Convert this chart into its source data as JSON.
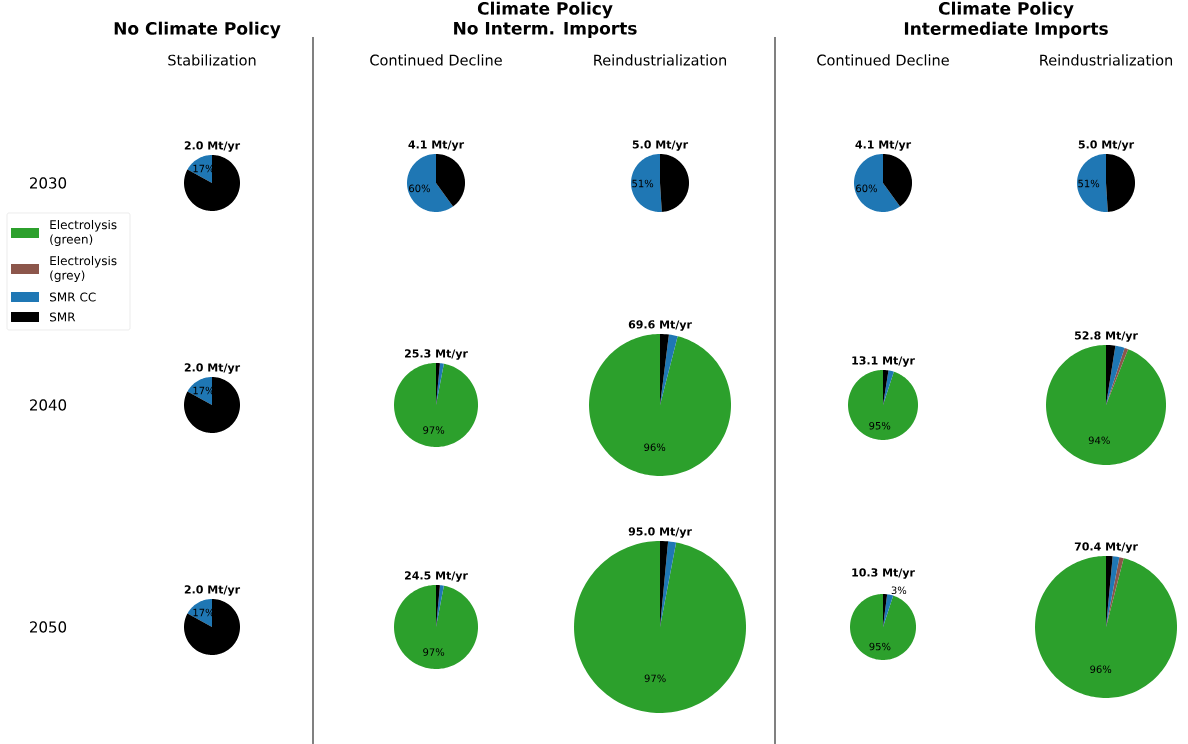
{
  "chart_data": [
    {
      "type": "pie",
      "title": "2.0 Mt/yr",
      "categories": [
        "Electrolysis (green)",
        "Electrolysis (grey)",
        "SMR CC",
        "SMR"
      ],
      "values": [
        0,
        0,
        17,
        83
      ],
      "colors": [
        "#2ca02c",
        "#8c564b",
        "#1f77b4",
        "#000000"
      ],
      "value_labels": [
        null,
        null,
        "17%",
        null
      ],
      "legend": "bottom left",
      "annotations": [
        "No Climate Policy",
        "Stabilization",
        "2030"
      ]
    },
    {
      "type": "pie",
      "title": "4.1 Mt/yr",
      "categories": [
        null,
        null,
        null,
        null
      ],
      "values": [
        0,
        0,
        60,
        40
      ],
      "colors": [
        "#2ca02c",
        "#8c564b",
        "#1f77b4",
        "#000000"
      ],
      "value_labels": [
        null,
        null,
        "60%",
        null
      ],
      "annotations": [
        "Climate Policy",
        "No Interm. Imports",
        "Continued Decline"
      ]
    },
    {
      "type": "pie",
      "title": "5.0 Mt/yr",
      "categories": [
        null,
        null,
        null,
        null
      ],
      "values": [
        0,
        0,
        51,
        49
      ],
      "colors": [
        "#2ca02c",
        "#8c564b",
        "#1f77b4",
        "#000000"
      ],
      "value_labels": [
        null,
        null,
        "51%",
        null
      ],
      "annotations": [
        "Reindustrialization"
      ]
    },
    {
      "type": "pie",
      "title": "4.1 Mt/yr",
      "categories": [
        null,
        null,
        null,
        null
      ],
      "values": [
        0,
        0,
        60,
        40
      ],
      "colors": [
        "#2ca02c",
        "#8c564b",
        "#1f77b4",
        "#000000"
      ],
      "value_labels": [
        null,
        null,
        "60%",
        null
      ],
      "annotations": [
        "Climate Policy",
        "Intermediate Imports",
        "Continued Decline"
      ]
    },
    {
      "type": "pie",
      "title": "5.0 Mt/yr",
      "categories": [
        null,
        null,
        null,
        null
      ],
      "values": [
        0,
        0,
        51,
        49
      ],
      "colors": [
        "#2ca02c",
        "#8c564b",
        "#1f77b4",
        "#000000"
      ],
      "value_labels": [
        null,
        null,
        "51%",
        null
      ],
      "annotations": [
        "Reindustrialization"
      ]
    },
    {
      "type": "pie",
      "title": "2.0 Mt/yr",
      "categories": [
        null,
        null,
        null,
        null
      ],
      "values": [
        0,
        0,
        17,
        83
      ],
      "colors": [
        "#2ca02c",
        "#8c564b",
        "#1f77b4",
        "#000000"
      ],
      "value_labels": [
        null,
        null,
        "17%",
        null
      ],
      "annotations": [
        "2040"
      ]
    },
    {
      "type": "pie",
      "title": "25.3 Mt/yr",
      "categories": [
        null,
        null,
        null,
        null
      ],
      "values": [
        97,
        0,
        1.5,
        1.5
      ],
      "colors": [
        "#2ca02c",
        "#8c564b",
        "#1f77b4",
        "#000000"
      ],
      "value_labels": [
        "97%",
        null,
        null,
        null
      ]
    },
    {
      "type": "pie",
      "title": "69.6 Mt/yr",
      "categories": [
        null,
        null,
        null,
        null
      ],
      "values": [
        96,
        0,
        2,
        2
      ],
      "colors": [
        "#2ca02c",
        "#8c564b",
        "#1f77b4",
        "#000000"
      ],
      "value_labels": [
        "96%",
        null,
        null,
        null
      ]
    },
    {
      "type": "pie",
      "title": "13.1 Mt/yr",
      "categories": [
        null,
        null,
        null,
        null
      ],
      "values": [
        95,
        0,
        2.5,
        2.5
      ],
      "colors": [
        "#2ca02c",
        "#8c564b",
        "#1f77b4",
        "#000000"
      ],
      "value_labels": [
        "95%",
        null,
        null,
        null
      ]
    },
    {
      "type": "pie",
      "title": "52.8 Mt/yr",
      "categories": [
        null,
        null,
        null,
        null
      ],
      "values": [
        94,
        1,
        2.5,
        2.5
      ],
      "colors": [
        "#2ca02c",
        "#8c564b",
        "#1f77b4",
        "#000000"
      ],
      "value_labels": [
        "94%",
        null,
        null,
        null
      ]
    },
    {
      "type": "pie",
      "title": "2.0 Mt/yr",
      "categories": [
        null,
        null,
        null,
        null
      ],
      "values": [
        0,
        0,
        17,
        83
      ],
      "colors": [
        "#2ca02c",
        "#8c564b",
        "#1f77b4",
        "#000000"
      ],
      "value_labels": [
        null,
        null,
        "17%",
        null
      ],
      "annotations": [
        "2050"
      ]
    },
    {
      "type": "pie",
      "title": "24.5 Mt/yr",
      "categories": [
        null,
        null,
        null,
        null
      ],
      "values": [
        97,
        0,
        1.5,
        1.5
      ],
      "colors": [
        "#2ca02c",
        "#8c564b",
        "#1f77b4",
        "#000000"
      ],
      "value_labels": [
        "97%",
        null,
        null,
        null
      ]
    },
    {
      "type": "pie",
      "title": "95.0 Mt/yr",
      "categories": [
        null,
        null,
        null,
        null
      ],
      "values": [
        97,
        0,
        1.5,
        1.5
      ],
      "colors": [
        "#2ca02c",
        "#8c564b",
        "#1f77b4",
        "#000000"
      ],
      "value_labels": [
        "97%",
        null,
        null,
        null
      ]
    },
    {
      "type": "pie",
      "title": "10.3 Mt/yr",
      "categories": [
        null,
        null,
        null,
        null
      ],
      "values": [
        95,
        0,
        3,
        2
      ],
      "colors": [
        "#2ca02c",
        "#8c564b",
        "#1f77b4",
        "#000000"
      ],
      "value_labels": [
        "95%",
        null,
        "3%",
        null
      ]
    },
    {
      "type": "pie",
      "title": "70.4 Mt/yr",
      "categories": [
        null,
        null,
        null,
        null
      ],
      "values": [
        96,
        1,
        1.5,
        1.5
      ],
      "colors": [
        "#2ca02c",
        "#8c564b",
        "#1f77b4",
        "#000000"
      ],
      "value_labels": [
        "96%",
        null,
        null,
        null
      ]
    }
  ]
}
